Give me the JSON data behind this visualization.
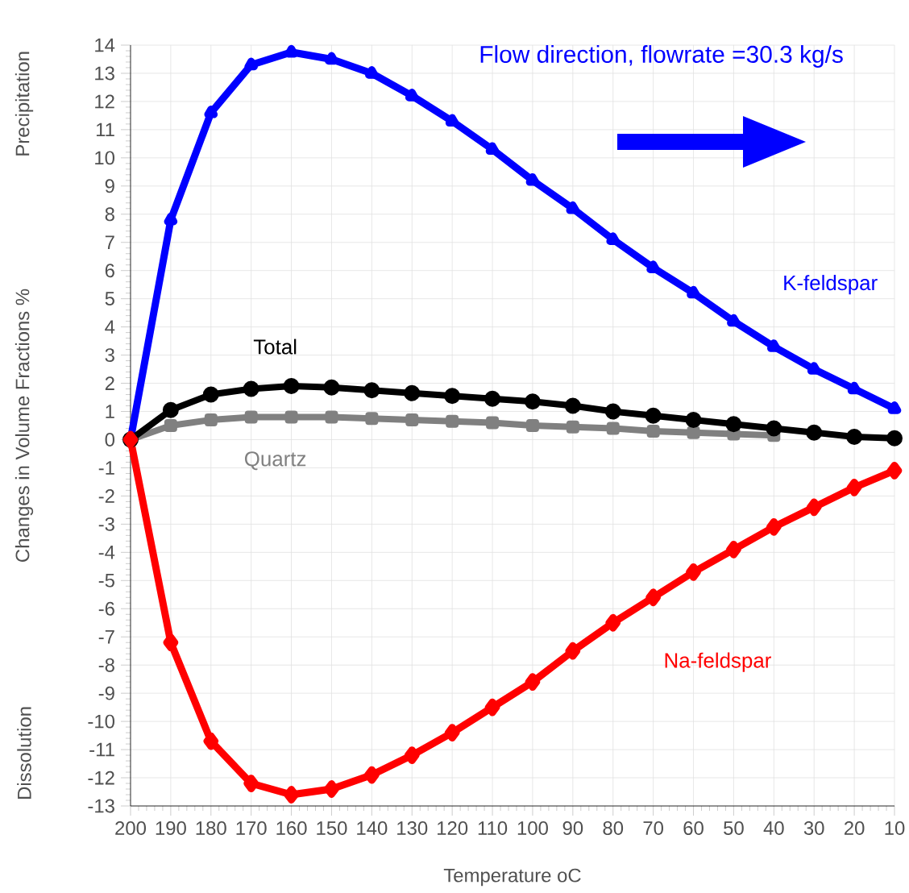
{
  "chart_data": {
    "type": "line",
    "title": "Flow  direction, flowrate =30.3 kg/s",
    "xlabel": "Temperature oC",
    "ylabel": "Changes in Volume Fractions %",
    "annotations": [
      "Precipitation",
      "Dissolution"
    ],
    "x": [
      200,
      190,
      180,
      170,
      160,
      150,
      140,
      130,
      120,
      110,
      100,
      90,
      80,
      70,
      60,
      50,
      40,
      30,
      20,
      10
    ],
    "series": [
      {
        "name": "K-feldspar",
        "color": "#0000ff",
        "marker": "triangle",
        "values": [
          0,
          7.8,
          11.6,
          13.3,
          13.75,
          13.5,
          13.0,
          12.2,
          11.3,
          10.3,
          9.2,
          8.2,
          7.1,
          6.1,
          5.2,
          4.2,
          3.3,
          2.5,
          1.8,
          1.1
        ]
      },
      {
        "name": "Quartz",
        "color": "#808080",
        "marker": "square",
        "values": [
          0,
          0.5,
          0.7,
          0.8,
          0.8,
          0.8,
          0.75,
          0.7,
          0.65,
          0.6,
          0.5,
          0.45,
          0.4,
          0.3,
          0.25,
          0.2,
          0.15,
          null,
          null,
          null
        ]
      },
      {
        "name": "Total",
        "color": "#000000",
        "marker": "circle",
        "values": [
          0,
          1.05,
          1.6,
          1.8,
          1.9,
          1.85,
          1.75,
          1.65,
          1.55,
          1.45,
          1.35,
          1.2,
          1.0,
          0.85,
          0.7,
          0.55,
          0.4,
          0.25,
          0.1,
          0.05
        ]
      },
      {
        "name": "Na-feldspar",
        "color": "#ff0000",
        "marker": "diamond",
        "values": [
          0,
          -7.2,
          -10.7,
          -12.2,
          -12.6,
          -12.4,
          -11.9,
          -11.2,
          -10.4,
          -9.5,
          -8.6,
          -7.5,
          -6.5,
          -5.6,
          -4.7,
          -3.9,
          -3.1,
          -2.4,
          -1.7,
          -1.1
        ]
      }
    ],
    "xlim": [
      200,
      10
    ],
    "ylim": [
      -13,
      14
    ],
    "xticks": [
      200,
      190,
      180,
      170,
      160,
      150,
      140,
      130,
      120,
      110,
      100,
      90,
      80,
      70,
      60,
      50,
      40,
      30,
      20,
      10
    ],
    "yticks": [
      -13,
      -12,
      -11,
      -10,
      -9,
      -8,
      -7,
      -6,
      -5,
      -4,
      -3,
      -2,
      -1,
      0,
      1,
      2,
      3,
      4,
      5,
      6,
      7,
      8,
      9,
      10,
      11,
      12,
      13,
      14
    ],
    "grid": true,
    "line_style": "solid"
  }
}
